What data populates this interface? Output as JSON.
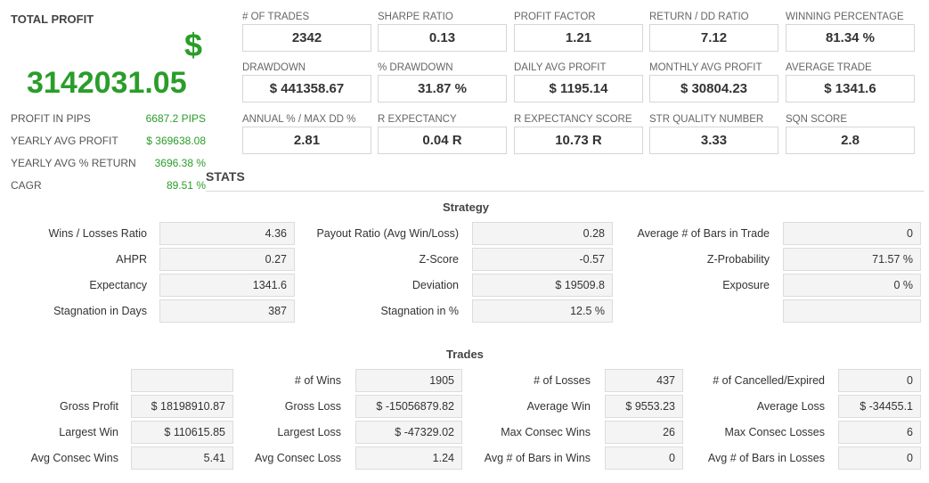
{
  "total_profit": {
    "label": "TOTAL PROFIT",
    "currency": "$",
    "value": "3142031.05",
    "details": [
      {
        "label": "PROFIT IN PIPS",
        "value": "6687.2 PIPS"
      },
      {
        "label": "YEARLY AVG PROFIT",
        "value": "$ 369638.08"
      },
      {
        "label": "YEARLY AVG % RETURN",
        "value": "3696.38 %"
      },
      {
        "label": "CAGR",
        "value": "89.51 %"
      }
    ]
  },
  "metrics": [
    [
      {
        "label": "# OF TRADES",
        "value": "2342"
      },
      {
        "label": "SHARPE RATIO",
        "value": "0.13"
      },
      {
        "label": "PROFIT FACTOR",
        "value": "1.21"
      },
      {
        "label": "RETURN / DD RATIO",
        "value": "7.12"
      },
      {
        "label": "WINNING PERCENTAGE",
        "value": "81.34 %"
      }
    ],
    [
      {
        "label": "DRAWDOWN",
        "value": "$ 441358.67"
      },
      {
        "label": "% DRAWDOWN",
        "value": "31.87 %"
      },
      {
        "label": "DAILY AVG PROFIT",
        "value": "$ 1195.14"
      },
      {
        "label": "MONTHLY AVG PROFIT",
        "value": "$ 30804.23"
      },
      {
        "label": "AVERAGE TRADE",
        "value": "$ 1341.6"
      }
    ],
    [
      {
        "label": "ANNUAL % / MAX DD %",
        "value": "2.81"
      },
      {
        "label": "R EXPECTANCY",
        "value": "0.04 R"
      },
      {
        "label": "R EXPECTANCY SCORE",
        "value": "10.73 R"
      },
      {
        "label": "STR QUALITY NUMBER",
        "value": "3.33"
      },
      {
        "label": "SQN SCORE",
        "value": "2.8"
      }
    ]
  ],
  "stats_title": "STATS",
  "strategy": {
    "title": "Strategy",
    "rows": [
      [
        {
          "label": "Wins / Losses Ratio",
          "value": "4.36"
        },
        {
          "label": "Payout Ratio (Avg Win/Loss)",
          "value": "0.28"
        },
        {
          "label": "Average # of Bars in Trade",
          "value": "0"
        }
      ],
      [
        {
          "label": "AHPR",
          "value": "0.27"
        },
        {
          "label": "Z-Score",
          "value": "-0.57"
        },
        {
          "label": "Z-Probability",
          "value": "71.57 %"
        }
      ],
      [
        {
          "label": "Expectancy",
          "value": "1341.6"
        },
        {
          "label": "Deviation",
          "value": "$ 19509.8"
        },
        {
          "label": "Exposure",
          "value": "0 %"
        }
      ],
      [
        {
          "label": "Stagnation in Days",
          "value": "387"
        },
        {
          "label": "Stagnation in %",
          "value": "12.5 %"
        },
        {
          "label": "",
          "value": ""
        }
      ]
    ]
  },
  "trades": {
    "title": "Trades",
    "rows": [
      [
        {
          "label": "",
          "value": ""
        },
        {
          "label": "# of Wins",
          "value": "1905"
        },
        {
          "label": "# of Losses",
          "value": "437"
        },
        {
          "label": "# of Cancelled/Expired",
          "value": "0"
        }
      ],
      [
        {
          "label": "Gross Profit",
          "value": "$ 18198910.87"
        },
        {
          "label": "Gross Loss",
          "value": "$ -15056879.82"
        },
        {
          "label": "Average Win",
          "value": "$ 9553.23"
        },
        {
          "label": "Average Loss",
          "value": "$ -34455.1"
        }
      ],
      [
        {
          "label": "Largest Win",
          "value": "$ 110615.85"
        },
        {
          "label": "Largest Loss",
          "value": "$ -47329.02"
        },
        {
          "label": "Max Consec Wins",
          "value": "26"
        },
        {
          "label": "Max Consec Losses",
          "value": "6"
        }
      ],
      [
        {
          "label": "Avg Consec Wins",
          "value": "5.41"
        },
        {
          "label": "Avg Consec Loss",
          "value": "1.24"
        },
        {
          "label": "Avg # of Bars in Wins",
          "value": "0"
        },
        {
          "label": "Avg # of Bars in Losses",
          "value": "0"
        }
      ]
    ]
  }
}
